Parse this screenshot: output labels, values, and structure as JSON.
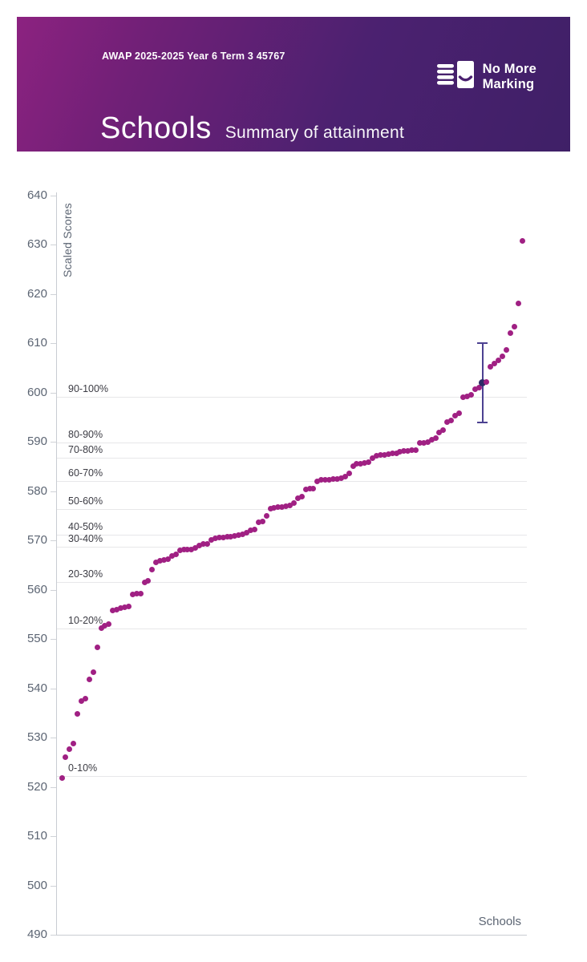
{
  "header": {
    "report_title": "AWAP 2025-2025 Year 6 Term 3 45767",
    "title": "Schools",
    "subtitle": "Summary of attainment",
    "logo_line1": "No More",
    "logo_line2": "Marking",
    "banner_gradient_left": "#8c2280",
    "banner_gradient_right": "#3f2067"
  },
  "chart_data": {
    "type": "scatter",
    "title": "Summary of attainment",
    "xlabel": "Schools",
    "ylabel": "Scaled Scores",
    "ylim": [
      490,
      640
    ],
    "yticks": [
      490,
      500,
      510,
      520,
      530,
      540,
      550,
      560,
      570,
      580,
      590,
      600,
      610,
      620,
      630,
      640
    ],
    "grid": "horizontal percentile boundary lines only",
    "legend": "none",
    "point_color": "#a02083",
    "highlight_point_color": "#2d2a66",
    "errorbar_color": "#4c4191",
    "percentile_lines": [
      {
        "label": "90-100%",
        "score": 598.5
      },
      {
        "label": "80-90%",
        "score": 589.3
      },
      {
        "label": "70-80%",
        "score": 586.2
      },
      {
        "label": "60-70%",
        "score": 581.5
      },
      {
        "label": "50-60%",
        "score": 575.8
      },
      {
        "label": "40-50%",
        "score": 570.5
      },
      {
        "label": "30-40%",
        "score": 568.1
      },
      {
        "label": "20-30%",
        "score": 561.0
      },
      {
        "label": "10-20%",
        "score": 551.5
      },
      {
        "label": "0-10%",
        "score": 521.5
      }
    ],
    "values": [
      521.2,
      525.4,
      527.0,
      528.1,
      534.1,
      536.7,
      537.2,
      541.2,
      542.7,
      547.7,
      551.5,
      552.0,
      552.4,
      555.1,
      555.3,
      555.6,
      555.8,
      555.9,
      558.4,
      558.5,
      558.6,
      560.8,
      561.1,
      563.4,
      565.0,
      565.3,
      565.4,
      565.6,
      566.2,
      566.6,
      567.3,
      567.5,
      567.5,
      567.6,
      567.8,
      568.4,
      568.6,
      568.7,
      569.5,
      569.8,
      570.0,
      570.0,
      570.1,
      570.1,
      570.3,
      570.4,
      570.6,
      570.9,
      571.4,
      571.6,
      573.0,
      573.2,
      574.4,
      575.9,
      576.0,
      576.1,
      576.2,
      576.3,
      576.4,
      576.9,
      577.9,
      578.2,
      579.7,
      579.9,
      579.9,
      581.4,
      581.6,
      581.6,
      581.7,
      581.8,
      581.9,
      582.0,
      582.4,
      583.0,
      584.4,
      584.9,
      585.0,
      585.1,
      585.3,
      586.0,
      586.5,
      586.7,
      586.8,
      586.9,
      587.0,
      587.1,
      587.3,
      587.5,
      587.6,
      587.7,
      587.7,
      589.1,
      589.2,
      589.3,
      589.8,
      590.2,
      591.3,
      591.7,
      593.4,
      593.7,
      594.7,
      595.2,
      598.4,
      598.6,
      599.0,
      600.1,
      600.4,
      601.3,
      601.6,
      604.6,
      605.3,
      605.9,
      606.7,
      608.0,
      611.5,
      612.7,
      617.5,
      630.2
    ],
    "highlight": {
      "index": 107,
      "value": 601.3,
      "error_low": 593.3,
      "error_high": 609.4
    }
  }
}
